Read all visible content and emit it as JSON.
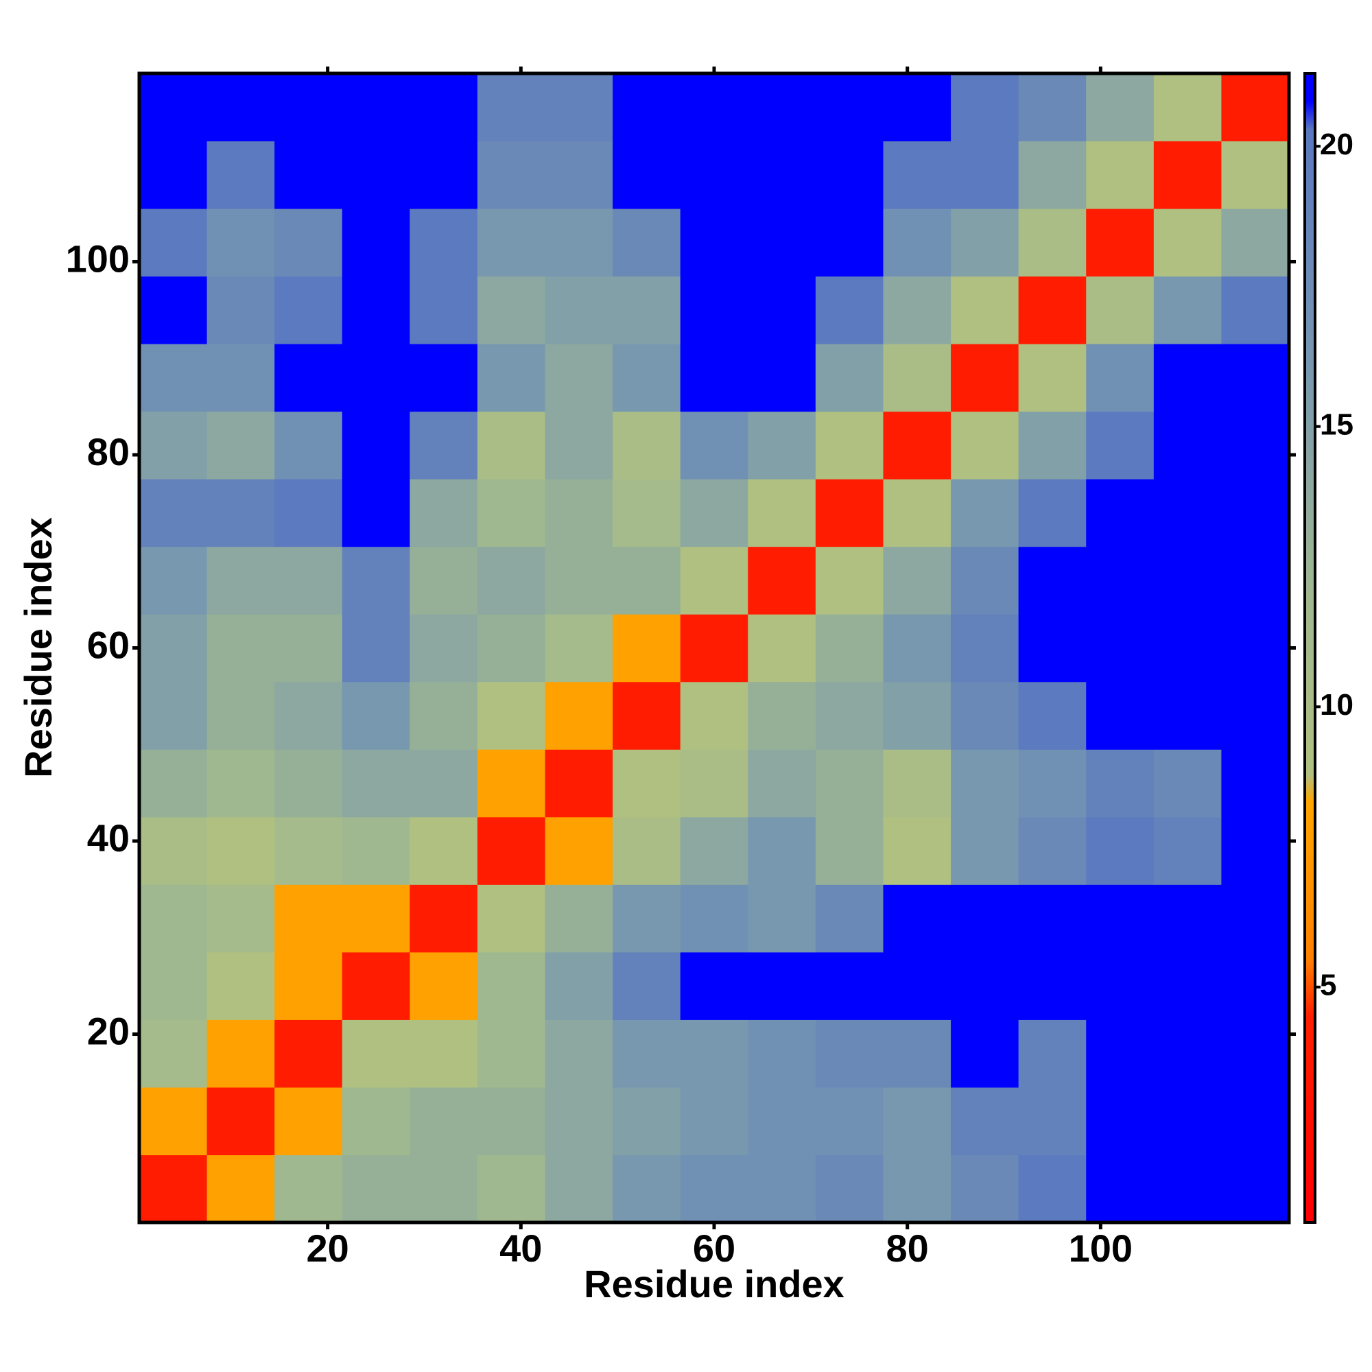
{
  "chart_data": {
    "type": "heatmap",
    "xlabel": "Residue index",
    "ylabel": "Residue index",
    "x": [
      4,
      11,
      18,
      25,
      32,
      39,
      46,
      53,
      60,
      67,
      74,
      81,
      88,
      95,
      102,
      109,
      116
    ],
    "y": [
      4,
      11,
      18,
      25,
      32,
      39,
      46,
      53,
      60,
      67,
      74,
      81,
      88,
      95,
      102,
      109,
      116
    ],
    "xlim": [
      0.5,
      119.5
    ],
    "ylim": [
      0.5,
      119.5
    ],
    "xticks": [
      20,
      40,
      60,
      80,
      100
    ],
    "yticks": [
      20,
      40,
      60,
      80,
      100
    ],
    "zlim": [
      0.8,
      21.3
    ],
    "colorbar_ticks": [
      5,
      10,
      15,
      20
    ],
    "colorscale": [
      {
        "value": 0.8,
        "color": "#ff0000"
      },
      {
        "value": 4.5,
        "color": "#ff2000"
      },
      {
        "value": 5.5,
        "color": "#ff8000"
      },
      {
        "value": 8.3,
        "color": "#ffa500"
      },
      {
        "value": 8.8,
        "color": "#b0c080"
      },
      {
        "value": 12,
        "color": "#a0b890"
      },
      {
        "value": 16,
        "color": "#7898b0"
      },
      {
        "value": 20.3,
        "color": "#5a78c0"
      },
      {
        "value": 20.8,
        "color": "#0000ff"
      },
      {
        "value": 21.3,
        "color": "#0000ff"
      }
    ],
    "z": [
      [
        4,
        8,
        12,
        13,
        13,
        12,
        14,
        16,
        17,
        17,
        18,
        16,
        18,
        20,
        21,
        21,
        21
      ],
      [
        8,
        4,
        8,
        12,
        13,
        13,
        14,
        15,
        16,
        17,
        17,
        16,
        19,
        19,
        21,
        21,
        21
      ],
      [
        11,
        8,
        4,
        9,
        9,
        12,
        14,
        16,
        16,
        17,
        18,
        18,
        21,
        19,
        21,
        21,
        21
      ],
      [
        12,
        9,
        8,
        4,
        8,
        12,
        15,
        19,
        21,
        21,
        21,
        21,
        21,
        21,
        21,
        21,
        21
      ],
      [
        12,
        11,
        8,
        8,
        4,
        9,
        13,
        16,
        17,
        16,
        18,
        21,
        21,
        21,
        21,
        21,
        21
      ],
      [
        10,
        9,
        11,
        12,
        9,
        4,
        8,
        10,
        14,
        16,
        13,
        9,
        16,
        18,
        20,
        19,
        21
      ],
      [
        13,
        12,
        13,
        14,
        14,
        8,
        4,
        9,
        10,
        14,
        13,
        10,
        16,
        17,
        19,
        18,
        21
      ],
      [
        15,
        13,
        14,
        16,
        13,
        9,
        8,
        4,
        9,
        13,
        14,
        15,
        18,
        20,
        21,
        21,
        21
      ],
      [
        15,
        13,
        13,
        19,
        14,
        13,
        11,
        8,
        4,
        9,
        13,
        16,
        19,
        21,
        21,
        21,
        21
      ],
      [
        16,
        14,
        14,
        19,
        13,
        14,
        13,
        13,
        9,
        4,
        9,
        14,
        18,
        21,
        21,
        21,
        21
      ],
      [
        19,
        19,
        20,
        21,
        14,
        12,
        13,
        11,
        14,
        9,
        4,
        9,
        16,
        20,
        21,
        21,
        21
      ],
      [
        15,
        14,
        17,
        21,
        19,
        10,
        14,
        10,
        17,
        15,
        9,
        4,
        9,
        15,
        20,
        21,
        21
      ],
      [
        17,
        17,
        21,
        21,
        21,
        16,
        14,
        16,
        21,
        21,
        15,
        10,
        4,
        9,
        17,
        21,
        21
      ],
      [
        21,
        18,
        20,
        21,
        20,
        14,
        15,
        15,
        21,
        21,
        20,
        14,
        9,
        4,
        10,
        16,
        20
      ],
      [
        20,
        17,
        18,
        21,
        20,
        16,
        16,
        18,
        21,
        21,
        21,
        17,
        15,
        10,
        4,
        9,
        14
      ],
      [
        21,
        20,
        21,
        21,
        21,
        18,
        18,
        21,
        21,
        21,
        21,
        20,
        20,
        14,
        9,
        4,
        9
      ],
      [
        21,
        21,
        21,
        21,
        21,
        19,
        19,
        21,
        21,
        21,
        21,
        21,
        20,
        18,
        14,
        9,
        4
      ]
    ]
  }
}
